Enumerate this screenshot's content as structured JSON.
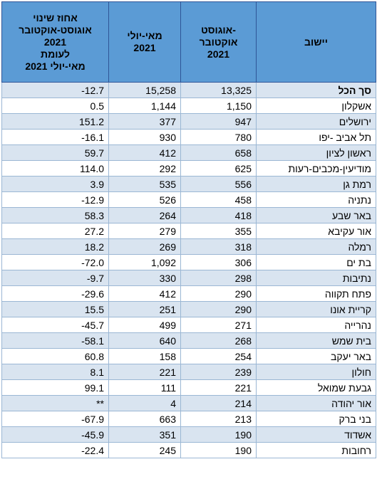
{
  "headers": {
    "change": [
      "אחוז שינוי",
      "אוגוסט-אוקטובר",
      "2021",
      "לעומת",
      "מאי-יולי 2021"
    ],
    "may_july": [
      "מאי-יולי",
      "2021"
    ],
    "aug_oct": [
      "אוגוסט-",
      "אוקטובר",
      "2021"
    ],
    "settlement": "יישוב"
  },
  "rows": [
    {
      "city": "סך הכל",
      "aug_oct": "13,325",
      "may_july": "15,258",
      "change": "-12.7"
    },
    {
      "city": "אשקלון",
      "aug_oct": "1,150",
      "may_july": "1,144",
      "change": "0.5"
    },
    {
      "city": "ירושלים",
      "aug_oct": "947",
      "may_july": "377",
      "change": "151.2"
    },
    {
      "city": "תל אביב -יפו",
      "aug_oct": "780",
      "may_july": "930",
      "change": "-16.1"
    },
    {
      "city": "ראשון לציון",
      "aug_oct": "658",
      "may_july": "412",
      "change": "59.7"
    },
    {
      "city": "מודיעין-מכבים-רעות",
      "aug_oct": "625",
      "may_july": "292",
      "change": "114.0"
    },
    {
      "city": "רמת גן",
      "aug_oct": "556",
      "may_july": "535",
      "change": "3.9"
    },
    {
      "city": "נתניה",
      "aug_oct": "458",
      "may_july": "526",
      "change": "-12.9"
    },
    {
      "city": "באר שבע",
      "aug_oct": "418",
      "may_july": "264",
      "change": "58.3"
    },
    {
      "city": "אור עקיבא",
      "aug_oct": "355",
      "may_july": "279",
      "change": "27.2"
    },
    {
      "city": "רמלה",
      "aug_oct": "318",
      "may_july": "269",
      "change": "18.2"
    },
    {
      "city": "בת ים",
      "aug_oct": "306",
      "may_july": "1,092",
      "change": "-72.0"
    },
    {
      "city": "נתיבות",
      "aug_oct": "298",
      "may_july": "330",
      "change": "-9.7"
    },
    {
      "city": "פתח תקווה",
      "aug_oct": "290",
      "may_july": "412",
      "change": "-29.6"
    },
    {
      "city": "קריית אונו",
      "aug_oct": "290",
      "may_july": "251",
      "change": "15.5"
    },
    {
      "city": "נהרייה",
      "aug_oct": "271",
      "may_july": "499",
      "change": "-45.7"
    },
    {
      "city": "בית שמש",
      "aug_oct": "268",
      "may_july": "640",
      "change": "-58.1"
    },
    {
      "city": "באר יעקב",
      "aug_oct": "254",
      "may_july": "158",
      "change": "60.8"
    },
    {
      "city": "חולון",
      "aug_oct": "239",
      "may_july": "221",
      "change": "8.1"
    },
    {
      "city": "גבעת שמואל",
      "aug_oct": "221",
      "may_july": "111",
      "change": "99.1"
    },
    {
      "city": "אור יהודה",
      "aug_oct": "214",
      "may_july": "4",
      "change": "**"
    },
    {
      "city": "בני ברק",
      "aug_oct": "213",
      "may_july": "663",
      "change": "-67.9"
    },
    {
      "city": "אשדוד",
      "aug_oct": "190",
      "may_july": "351",
      "change": "-45.9"
    },
    {
      "city": "רחובות",
      "aug_oct": "190",
      "may_july": "245",
      "change": "-22.4"
    }
  ]
}
